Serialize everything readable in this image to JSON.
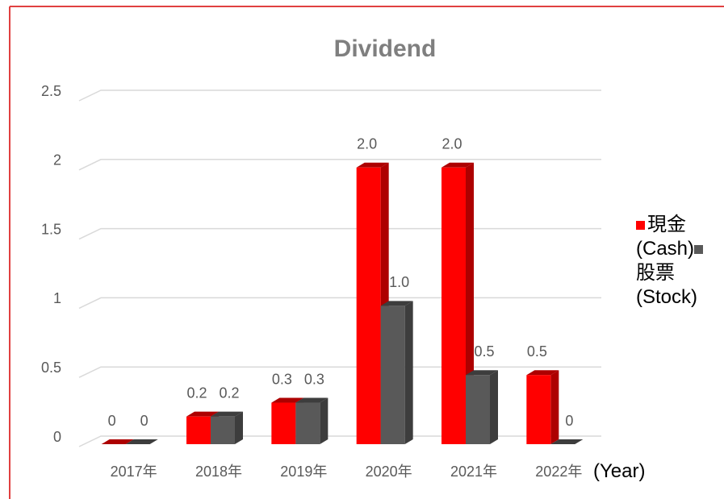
{
  "chart_data": {
    "type": "bar3d",
    "title": "Dividend",
    "x_label": "(Year)",
    "categories": [
      "2017年",
      "2018年",
      "2019年",
      "2020年",
      "2021年",
      "2022年"
    ],
    "series": [
      {
        "name": "現金(Cash)",
        "color": "#ff0000",
        "values": [
          0,
          0.2,
          0.3,
          2,
          2,
          0.5
        ],
        "value_labels": [
          "0",
          "0.2",
          "0.3",
          "2.0",
          "2.0",
          "0.5"
        ]
      },
      {
        "name": "股票(Stock)",
        "color": "#595959",
        "values": [
          0,
          0.2,
          0.3,
          1,
          0.5,
          0
        ],
        "value_labels": [
          "0",
          "0.2",
          "0.3",
          "1.0",
          "0.5",
          "0"
        ]
      }
    ],
    "ylim": [
      0,
      2.5
    ],
    "yticks": [
      0,
      0.5,
      1,
      1.5,
      2,
      2.5
    ],
    "grid": true,
    "legend": "right"
  }
}
